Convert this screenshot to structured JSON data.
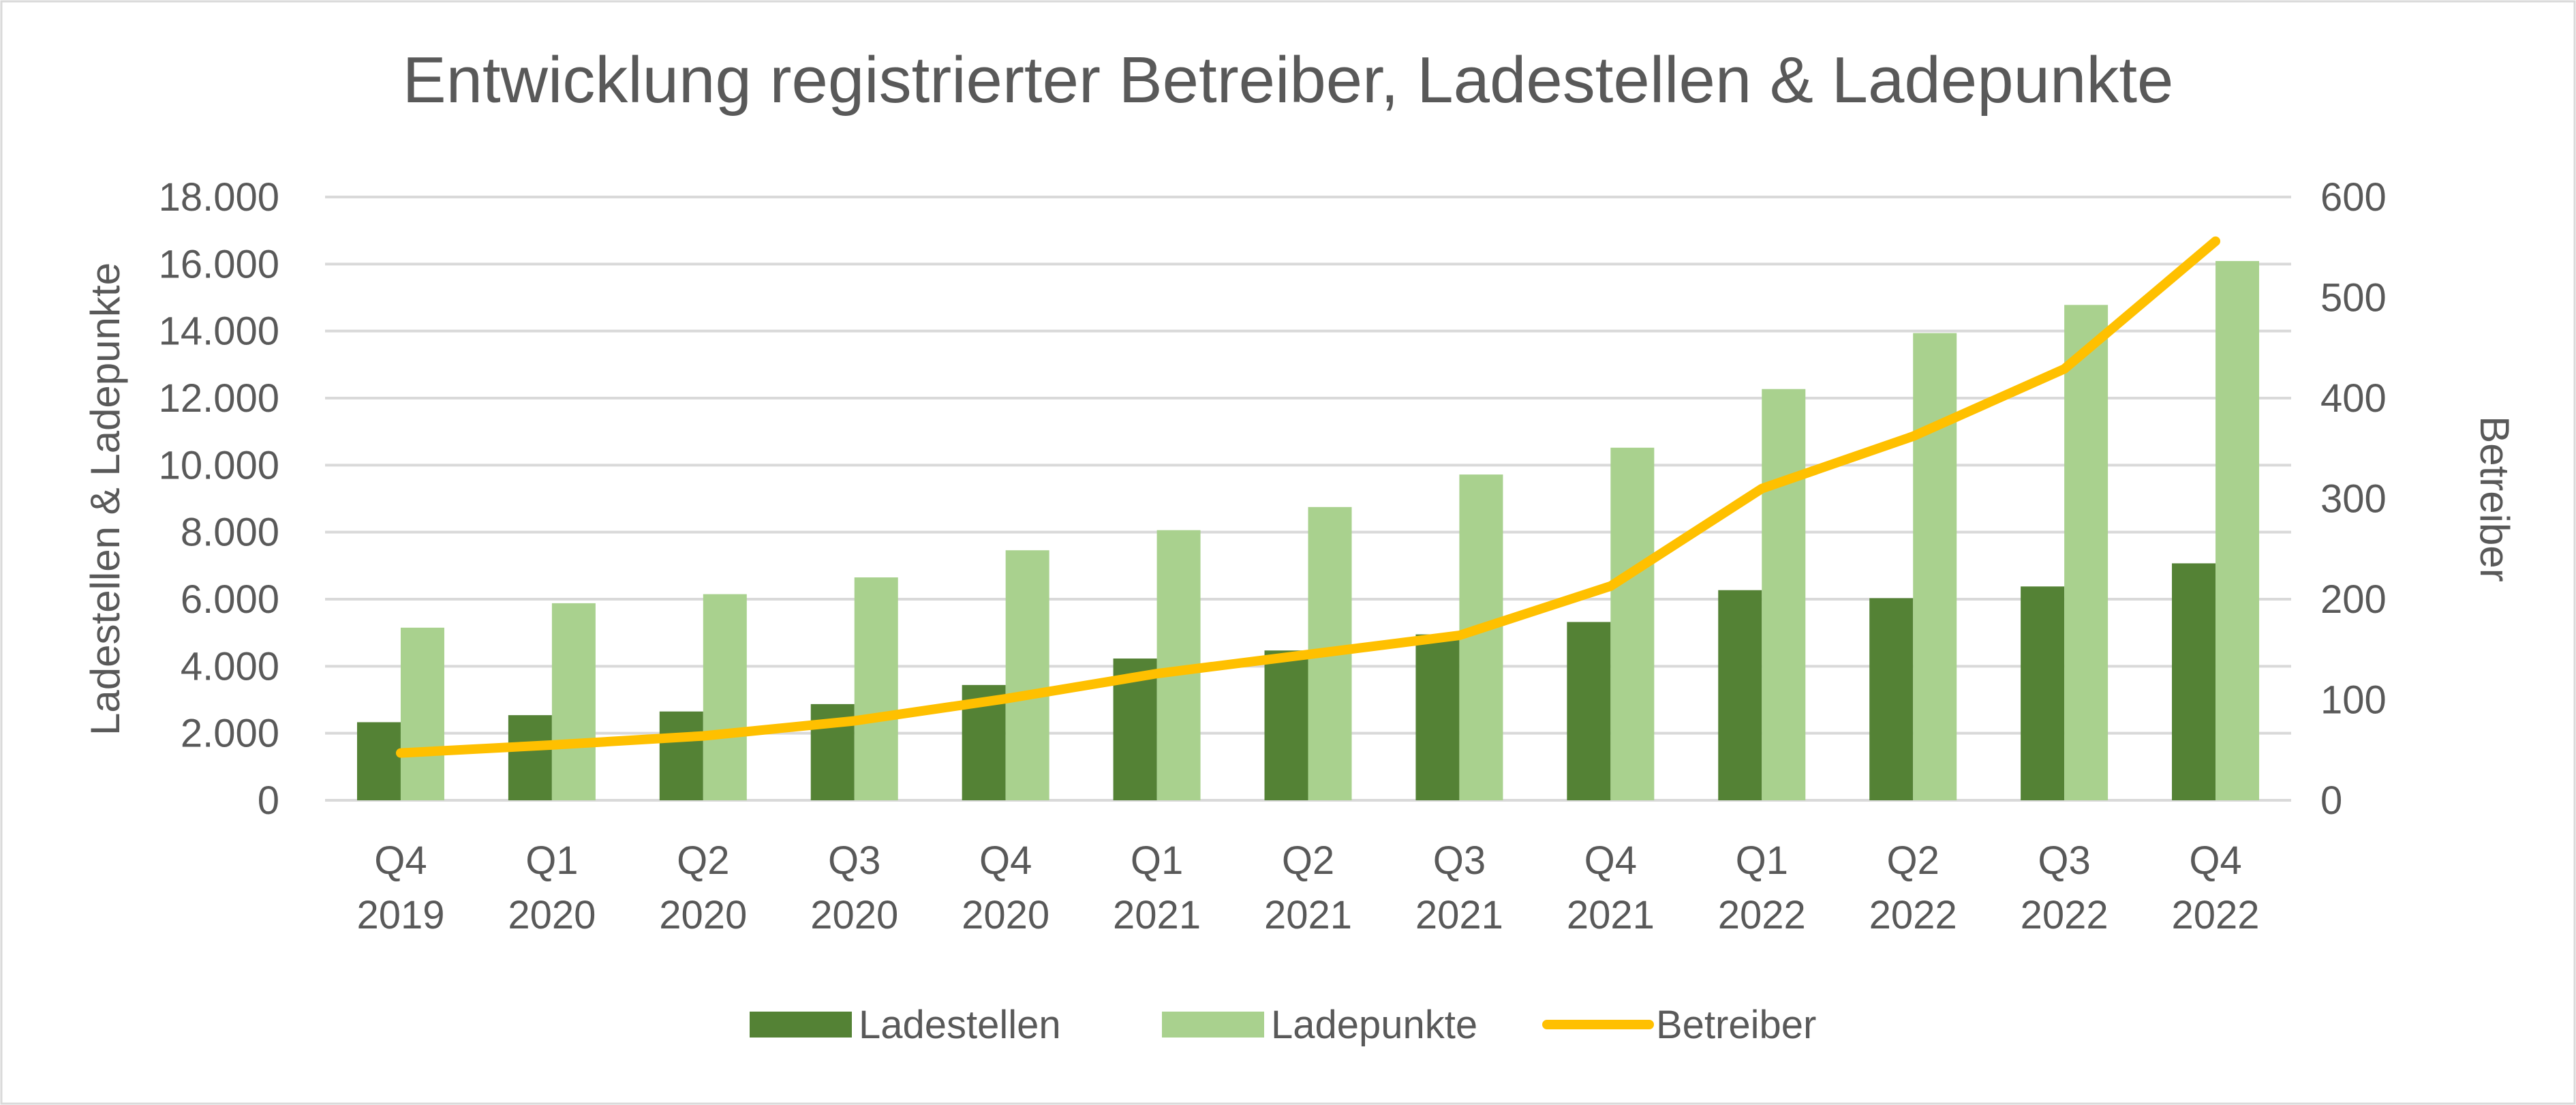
{
  "chart_data": {
    "type": "bar+line",
    "title": "Entwicklung registrierter Betreiber, Ladestellen & Ladepunkte",
    "categories": [
      [
        "Q4",
        "2019"
      ],
      [
        "Q1",
        "2020"
      ],
      [
        "Q2",
        "2020"
      ],
      [
        "Q3",
        "2020"
      ],
      [
        "Q4",
        "2020"
      ],
      [
        "Q1",
        "2021"
      ],
      [
        "Q2",
        "2021"
      ],
      [
        "Q3",
        "2021"
      ],
      [
        "Q4",
        "2021"
      ],
      [
        "Q1",
        "2022"
      ],
      [
        "Q2",
        "2022"
      ],
      [
        "Q3",
        "2022"
      ],
      [
        "Q4",
        "2022"
      ]
    ],
    "ylabel": "Ladestellen & Ladepunkte",
    "ylabel_right": "Betreiber",
    "ylim": [
      0,
      18000
    ],
    "ylim_right": [
      0,
      600
    ],
    "yticks": [
      "0",
      "2.000",
      "4.000",
      "6.000",
      "8.000",
      "10.000",
      "12.000",
      "14.000",
      "16.000",
      "18.000"
    ],
    "yticks_right": [
      "0",
      "100",
      "200",
      "300",
      "400",
      "500",
      "600"
    ],
    "grid": true,
    "legend_position": "bottom",
    "series": [
      {
        "name": "Ladestellen",
        "type": "bar",
        "axis": "left",
        "color": "#548235",
        "values": [
          2330,
          2540,
          2650,
          2870,
          3440,
          4230,
          4470,
          4950,
          5320,
          6270,
          6030,
          6380,
          7070
        ]
      },
      {
        "name": "Ladepunkte",
        "type": "bar",
        "axis": "left",
        "color": "#A9D18E",
        "values": [
          5150,
          5880,
          6150,
          6650,
          7460,
          8060,
          8750,
          9720,
          10520,
          12270,
          13940,
          14780,
          16090
        ]
      },
      {
        "name": "Betreiber",
        "type": "line",
        "axis": "right",
        "color": "#FFC000",
        "values": [
          47,
          55,
          64,
          79,
          101,
          126,
          145,
          164,
          213,
          310,
          362,
          429,
          556
        ]
      }
    ]
  }
}
